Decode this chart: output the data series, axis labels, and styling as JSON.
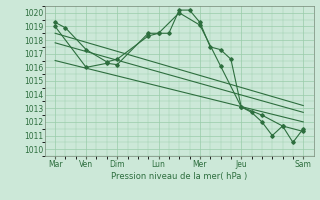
{
  "background_color": "#cce8d8",
  "grid_color": "#99ccaa",
  "line_color": "#2d6e3e",
  "xlim": [
    0,
    13
  ],
  "ylim": [
    1009.5,
    1020.5
  ],
  "yticks": [
    1010,
    1011,
    1012,
    1013,
    1014,
    1015,
    1016,
    1017,
    1018,
    1019,
    1020
  ],
  "xlabel": "Pression niveau de la mer( hPa )",
  "day_labels": [
    "Mar",
    "Ven",
    "Dim",
    "Lun",
    "Mer",
    "Jeu",
    "Sam"
  ],
  "day_ticks": [
    0.5,
    2.0,
    3.5,
    5.5,
    7.5,
    9.5,
    12.5
  ],
  "series1": {
    "x": [
      0.5,
      1.0,
      2.0,
      3.0,
      3.5,
      5.0,
      5.5,
      6.0,
      6.5,
      7.0,
      7.5,
      8.0,
      8.5,
      9.0,
      9.5,
      10.0,
      10.5,
      11.0,
      11.5,
      12.0,
      12.5
    ],
    "y": [
      1019.3,
      1018.9,
      1017.3,
      1016.4,
      1016.6,
      1018.3,
      1018.5,
      1018.5,
      1020.2,
      1020.2,
      1019.3,
      1017.5,
      1017.3,
      1016.6,
      1013.1,
      1012.7,
      1012.0,
      1011.0,
      1011.7,
      1010.5,
      1011.5
    ]
  },
  "series2": {
    "x": [
      0.5,
      2.0,
      3.0,
      3.5,
      5.0,
      5.5,
      6.5,
      7.5,
      8.5,
      9.5,
      10.5,
      11.5,
      12.5
    ],
    "y": [
      1019.0,
      1016.0,
      1016.3,
      1016.2,
      1018.5,
      1018.5,
      1020.0,
      1019.1,
      1016.1,
      1013.1,
      1012.5,
      1011.7,
      1011.3
    ]
  },
  "trend1": {
    "x": [
      0.5,
      12.5
    ],
    "y": [
      1018.5,
      1013.2
    ]
  },
  "trend2": {
    "x": [
      0.5,
      12.5
    ],
    "y": [
      1017.8,
      1012.7
    ]
  },
  "trend3": {
    "x": [
      0.5,
      12.5
    ],
    "y": [
      1016.5,
      1012.0
    ]
  },
  "marker": "D",
  "marker_size": 1.8,
  "linewidth": 0.8,
  "tick_fontsize": 5.5,
  "xlabel_fontsize": 6.0
}
